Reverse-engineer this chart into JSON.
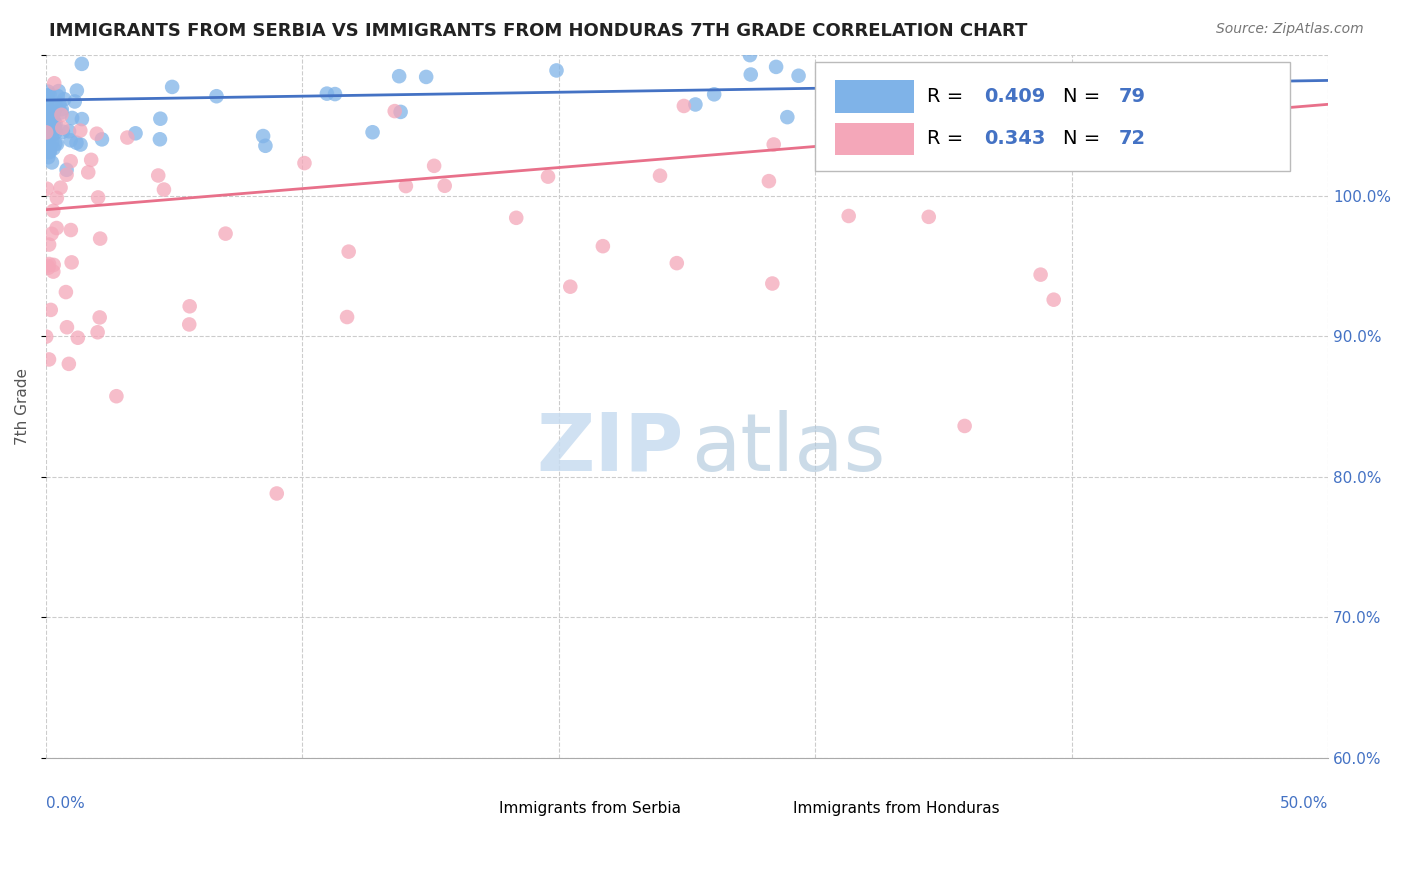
{
  "title": "IMMIGRANTS FROM SERBIA VS IMMIGRANTS FROM HONDURAS 7TH GRADE CORRELATION CHART",
  "source": "Source: ZipAtlas.com",
  "ylabel": "7th Grade",
  "r_serbia": 0.409,
  "n_serbia": 79,
  "r_honduras": 0.343,
  "n_honduras": 72,
  "serbia_color": "#7FB3E8",
  "honduras_color": "#F4A7B9",
  "serbia_line_color": "#4472C4",
  "honduras_line_color": "#E8708A",
  "xlim": [
    0,
    50
  ],
  "ylim": [
    50,
    100
  ],
  "yticks": [
    50,
    60,
    70,
    80,
    90,
    100
  ],
  "title_fontsize": 13,
  "source_fontsize": 10,
  "watermark_zip_color": "#C8DCF0",
  "watermark_atlas_color": "#B0C8DC"
}
